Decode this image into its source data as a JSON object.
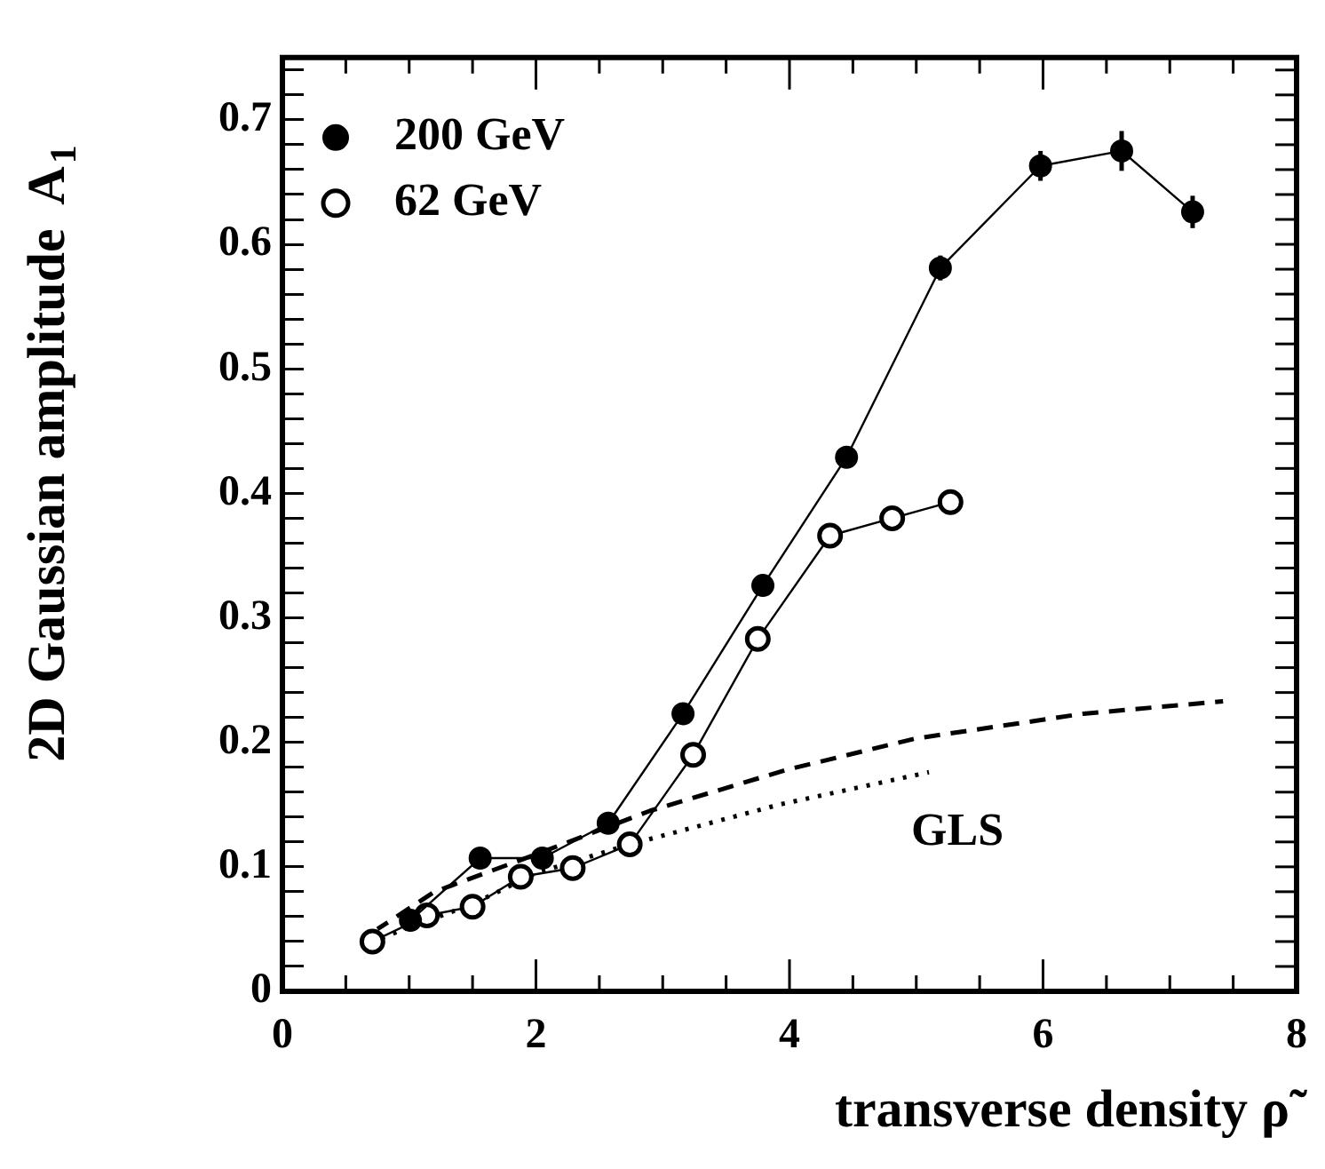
{
  "chart_data": {
    "type": "line",
    "xlabel": "transverse density ρ̃",
    "ylabel": "2D Gaussian amplitude  A$_{1}$",
    "annotations": [
      "GLS"
    ],
    "xlim": [
      0,
      8
    ],
    "ylim": [
      0,
      0.75
    ],
    "xticks": [
      0,
      {
        "value": 0.5,
        "label": null
      },
      {
        "value": 1,
        "label": null
      },
      {
        "value": 1.5,
        "label": null
      },
      2,
      {
        "value": 2.5,
        "label": null
      },
      {
        "value": 3,
        "label": null
      },
      {
        "value": 3.5,
        "label": null
      },
      4,
      {
        "value": 4.5,
        "label": null
      },
      {
        "value": 5,
        "label": null
      },
      {
        "value": 5.5,
        "label": null
      },
      6,
      {
        "value": 6.5,
        "label": null
      },
      {
        "value": 7,
        "label": null
      },
      {
        "value": 7.5,
        "label": null
      },
      8
    ],
    "yticks": [
      0,
      {
        "value": 0.02,
        "label": null
      },
      {
        "value": 0.04,
        "label": null
      },
      {
        "value": 0.06,
        "label": null
      },
      {
        "value": 0.08,
        "label": null
      },
      0.1,
      {
        "value": 0.12,
        "label": null
      },
      {
        "value": 0.14,
        "label": null
      },
      {
        "value": 0.16,
        "label": null
      },
      {
        "value": 0.18,
        "label": null
      },
      0.2,
      {
        "value": 0.22,
        "label": null
      },
      {
        "value": 0.24,
        "label": null
      },
      {
        "value": 0.26,
        "label": null
      },
      {
        "value": 0.28,
        "label": null
      },
      0.3,
      {
        "value": 0.32,
        "label": null
      },
      {
        "value": 0.34,
        "label": null
      },
      {
        "value": 0.36,
        "label": null
      },
      {
        "value": 0.38,
        "label": null
      },
      0.4,
      {
        "value": 0.42,
        "label": null
      },
      {
        "value": 0.44,
        "label": null
      },
      {
        "value": 0.46,
        "label": null
      },
      {
        "value": 0.48,
        "label": null
      },
      0.5,
      {
        "value": 0.52,
        "label": null
      },
      {
        "value": 0.54,
        "label": null
      },
      {
        "value": 0.56,
        "label": null
      },
      {
        "value": 0.58,
        "label": null
      },
      0.6,
      {
        "value": 0.62,
        "label": null
      },
      {
        "value": 0.64,
        "label": null
      },
      {
        "value": 0.66,
        "label": null
      },
      {
        "value": 0.68,
        "label": null
      },
      0.7,
      {
        "value": 0.72,
        "label": null
      },
      {
        "value": 0.74,
        "label": null
      }
    ],
    "grid": false,
    "legend": "top left",
    "series": [
      {
        "name": "200 GeV",
        "color": "#000000",
        "marker": "circle",
        "line_style": "solid",
        "x": [
          1.01,
          1.56,
          2.05,
          2.57,
          3.16,
          3.79,
          4.45,
          5.19,
          5.98,
          6.62,
          7.18
        ],
        "values": [
          0.057,
          0.107,
          0.107,
          0.135,
          0.223,
          0.326,
          0.429,
          0.581,
          0.663,
          0.675,
          0.626
        ],
        "errors": [
          null,
          null,
          null,
          null,
          null,
          0.008,
          0.008,
          0.01,
          0.012,
          0.016,
          0.013
        ]
      },
      {
        "name": "62 GeV",
        "color": "#000000",
        "marker": "circle",
        "line_style": "solid",
        "x": [
          0.71,
          1.14,
          1.5,
          1.88,
          2.29,
          2.74,
          3.24,
          3.75,
          4.32,
          4.81,
          5.27
        ],
        "values": [
          0.04,
          0.061,
          0.068,
          0.092,
          0.099,
          0.118,
          0.19,
          0.283,
          0.366,
          0.38,
          0.393
        ]
      },
      {
        "color": "#000000",
        "marker": "none",
        "line_style": "dashed",
        "x": [
          0.75,
          1.2,
          2.0,
          2.9,
          3.98,
          4.99,
          6.32,
          7.42
        ],
        "values": [
          0.05,
          0.08,
          0.11,
          0.145,
          0.178,
          0.203,
          0.223,
          0.233
        ]
      },
      {
        "color": "#000000",
        "marker": "none",
        "line_style": "dotted",
        "x": [
          0.7,
          1.5,
          2.0,
          2.74,
          3.92,
          5.1
        ],
        "values": [
          0.04,
          0.07,
          0.095,
          0.118,
          0.15,
          0.176
        ]
      }
    ]
  }
}
